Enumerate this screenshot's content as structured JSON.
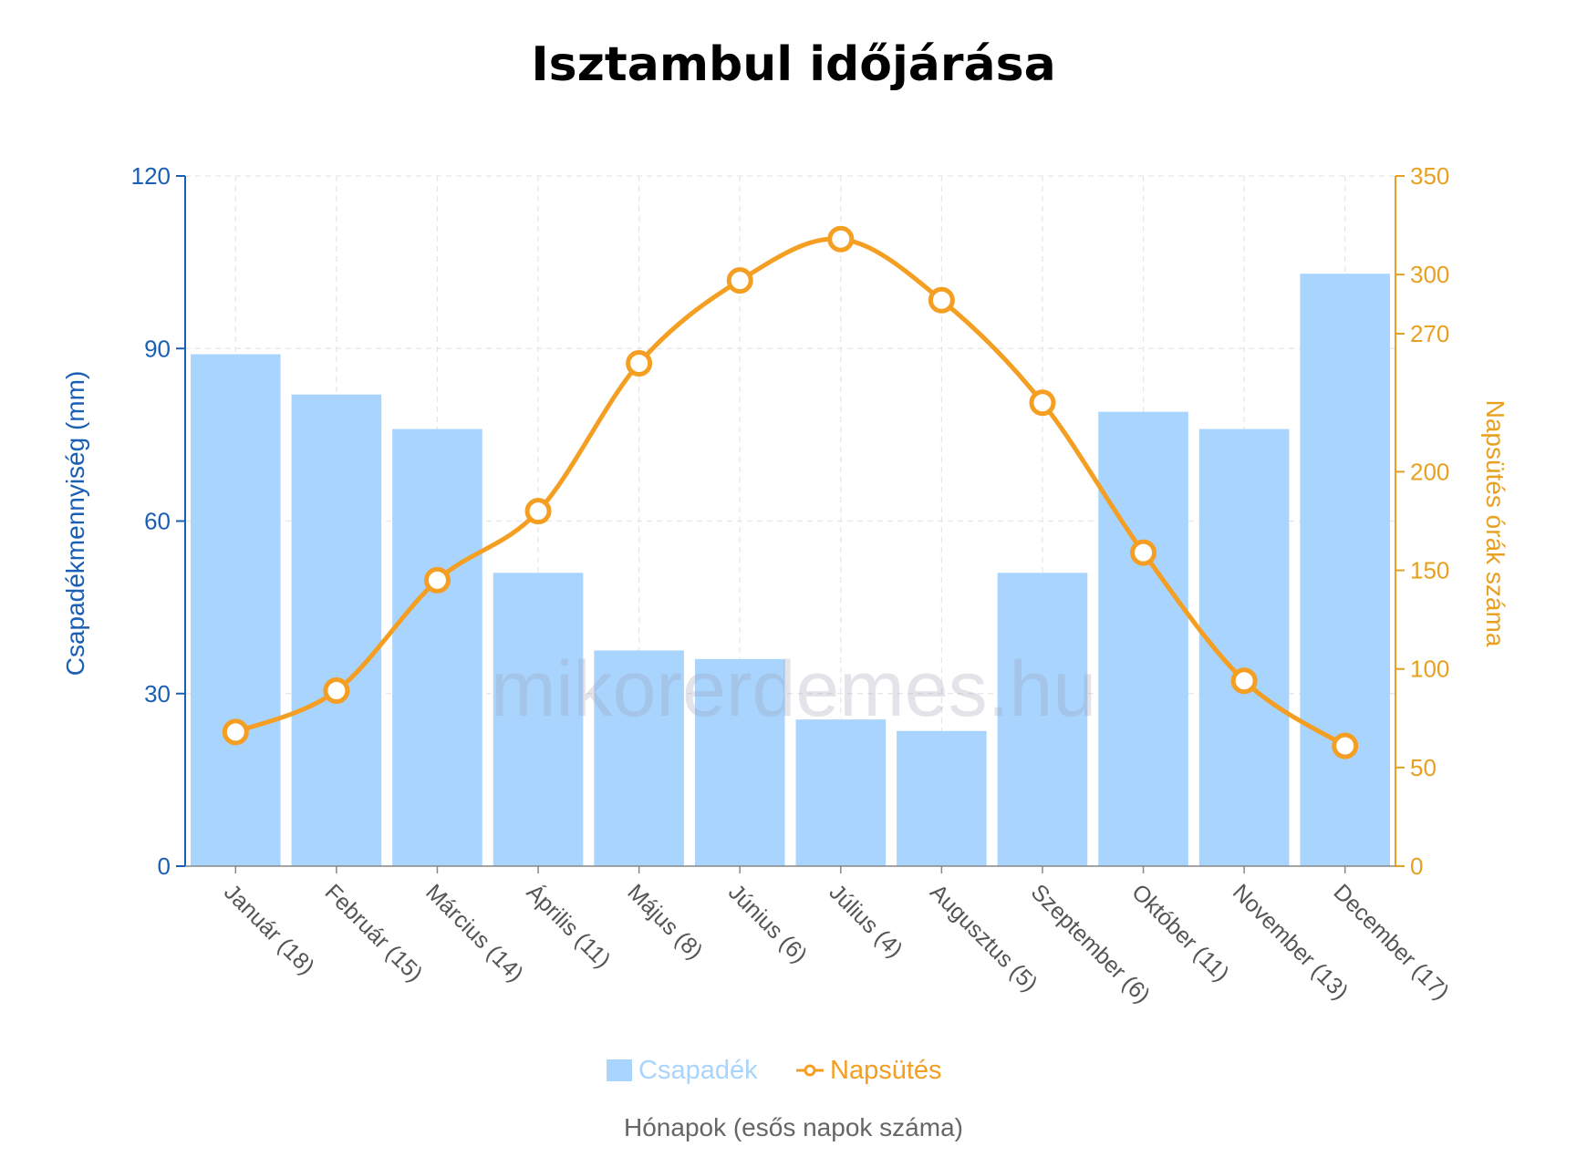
{
  "chart_data": {
    "type": "bar+line",
    "title": "Isztambul időjárása",
    "xlabel": "Hónapok (esős napok száma)",
    "categories": [
      "Január (18)",
      "Február (15)",
      "Március (14)",
      "Április (11)",
      "Május (8)",
      "Június (6)",
      "Július (4)",
      "Augusztus (5)",
      "Szeptember (6)",
      "Október (11)",
      "November (13)",
      "December (17)"
    ],
    "y_left": {
      "label": "Csapadékmennyiség (mm)",
      "ylim": [
        0,
        120
      ],
      "ticks": [
        0,
        30,
        60,
        90,
        120
      ]
    },
    "y_right": {
      "label": "Napsütés órák száma",
      "ylim": [
        0,
        350
      ],
      "ticks": [
        0,
        50,
        100,
        150,
        200,
        270,
        300,
        350
      ]
    },
    "series": [
      {
        "name": "Csapadék",
        "type": "bar",
        "axis": "left",
        "color": "#a8d4fe",
        "values": [
          89,
          82,
          76,
          51,
          37.5,
          36,
          25.5,
          23.5,
          51,
          79,
          76,
          103
        ]
      },
      {
        "name": "Napsütés",
        "type": "line",
        "axis": "right",
        "color": "#f49e22",
        "values": [
          68,
          89,
          145,
          180,
          255,
          297,
          318,
          287,
          235,
          159,
          94,
          61
        ]
      }
    ],
    "grid": true,
    "legend": "bottom-center",
    "watermark": "mikorerdemes.hu",
    "colors": {
      "left_axis": "#1a5fb4",
      "right_axis": "#e8a020",
      "grid": "#e6e6e6"
    }
  }
}
